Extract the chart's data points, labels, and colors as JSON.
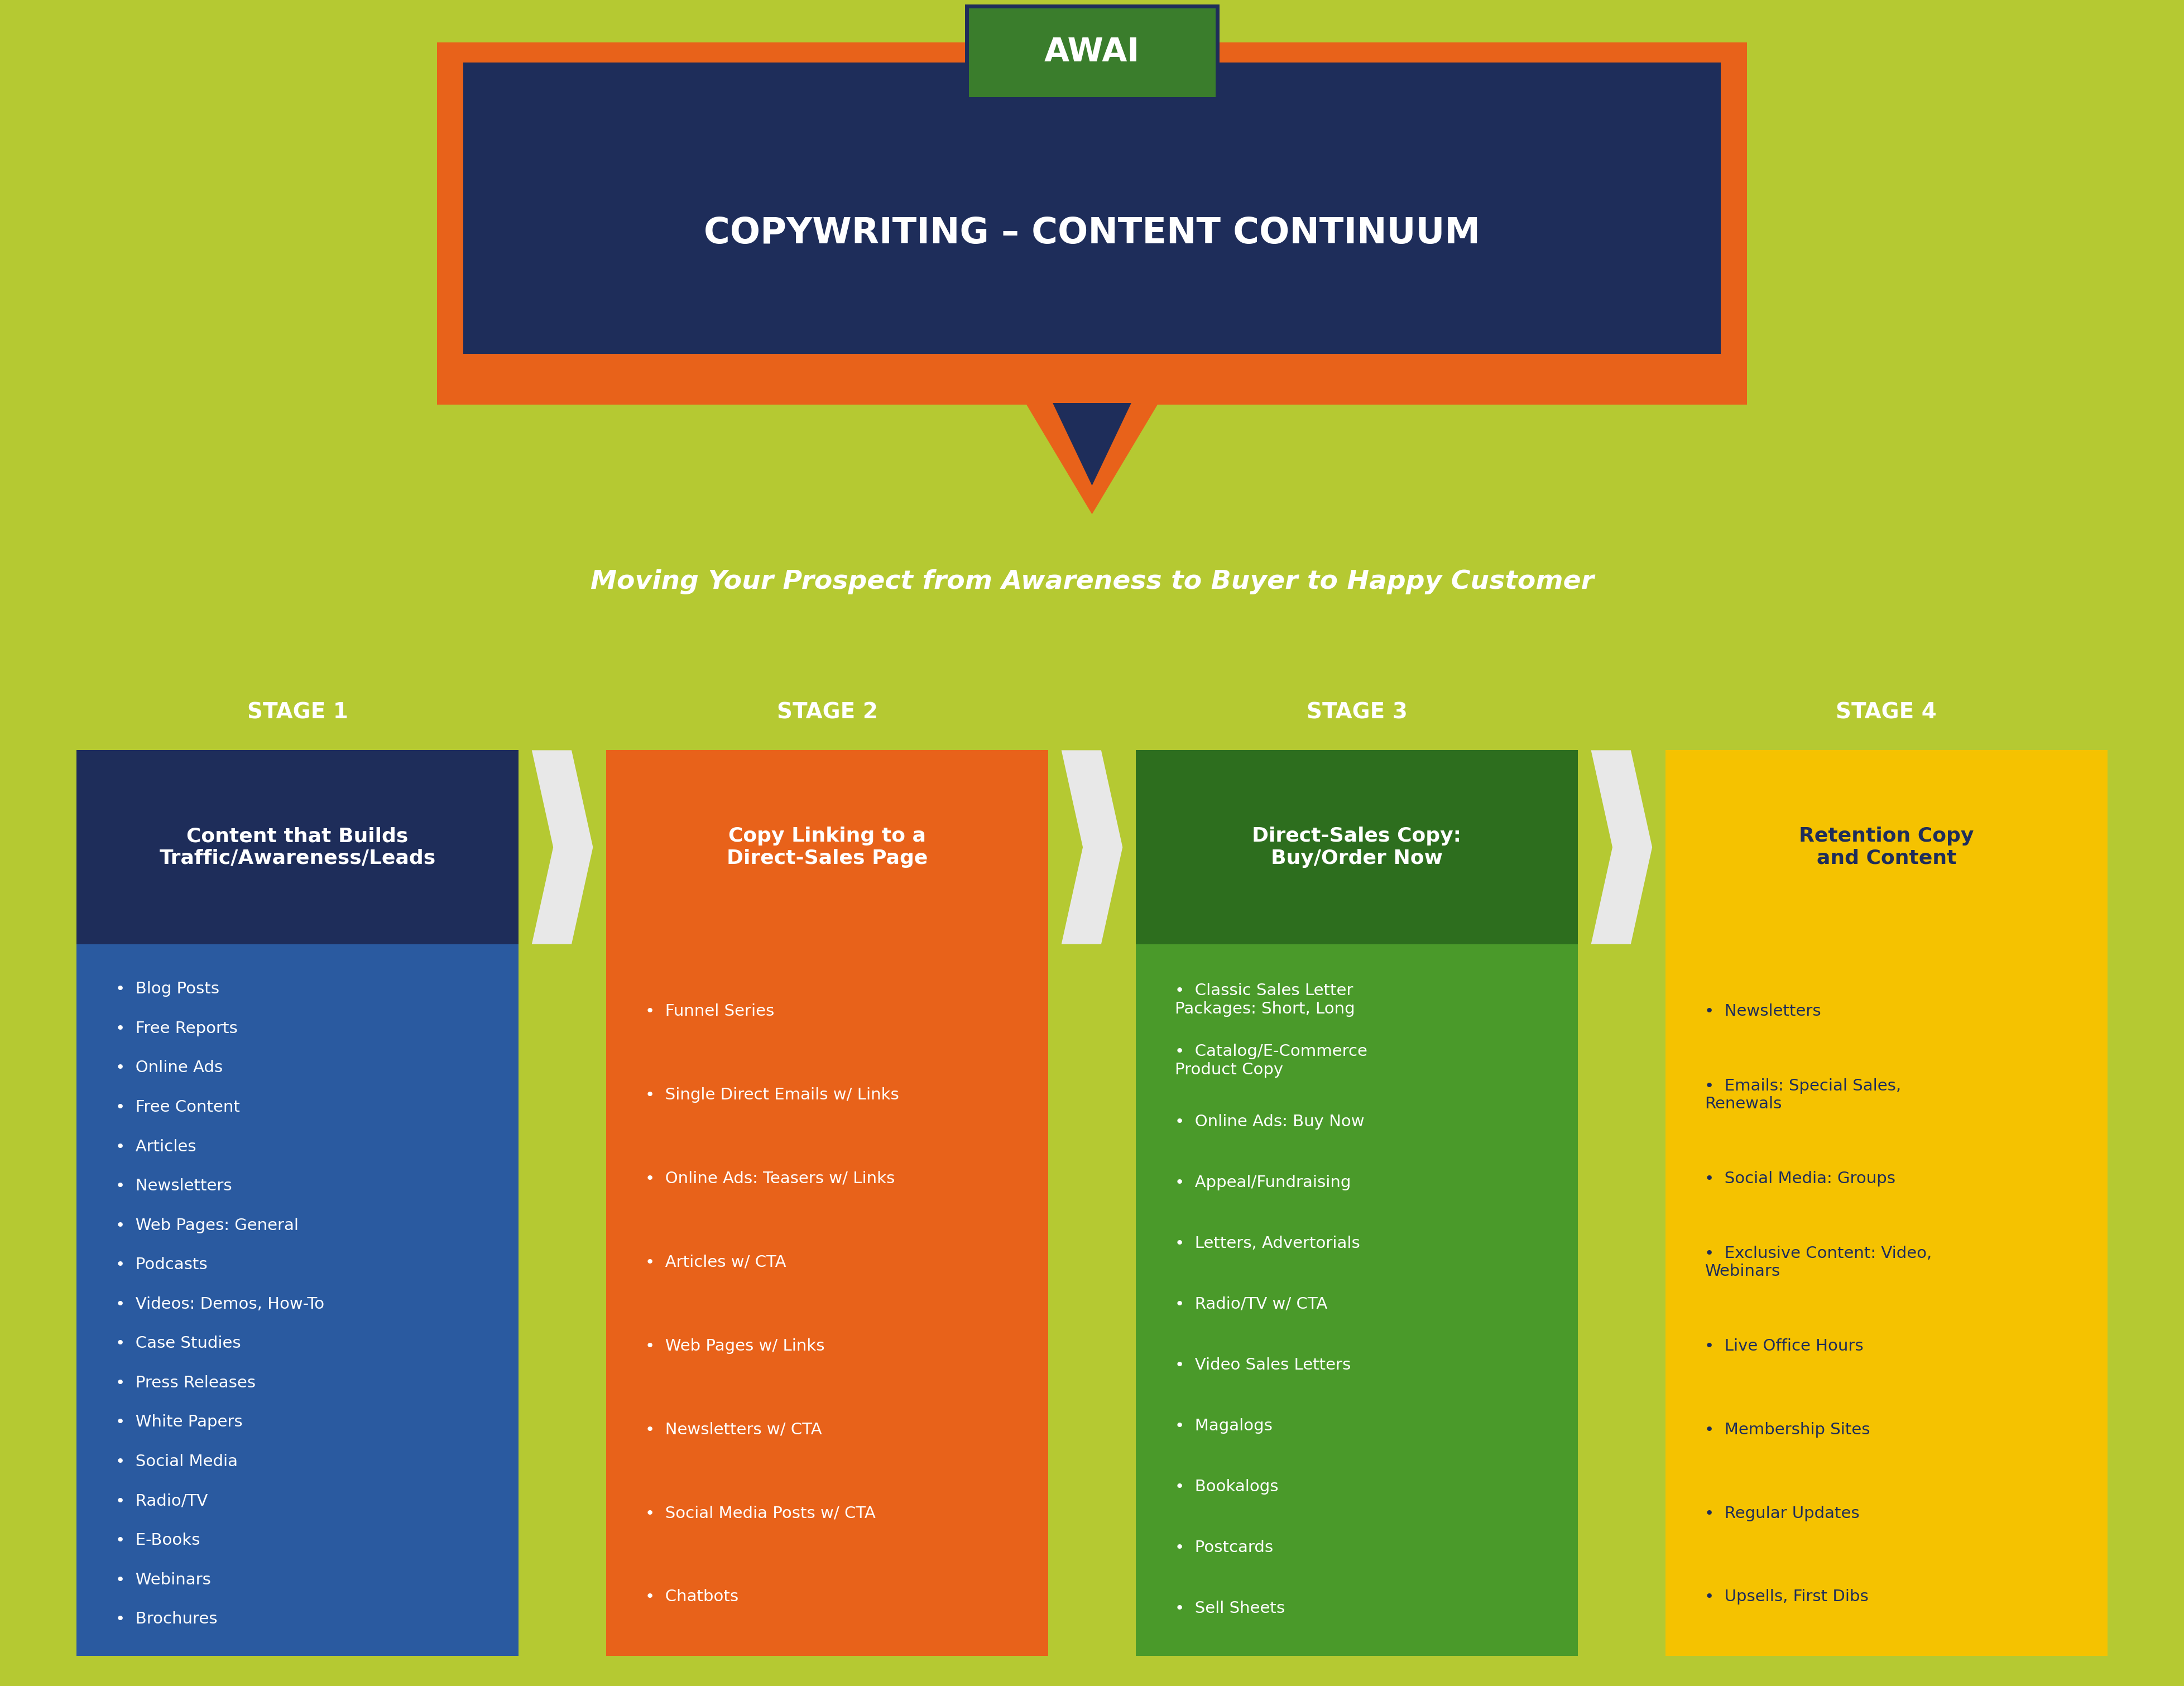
{
  "bg_color": "#b5c932",
  "title_box_bg": "#1e2d5a",
  "title_box_border": "#e8621a",
  "title_text": "COPYWRITING – CONTENT CONTINUUM",
  "title_color": "#ffffff",
  "awai_box_bg": "#3a7d2c",
  "awai_box_border": "#1e2d5a",
  "awai_text": "AWAI",
  "awai_text_color": "#ffffff",
  "subtitle": "Moving Your Prospect from Awareness to Buyer to Happy Customer",
  "subtitle_color": "#ffffff",
  "stages": [
    "STAGE 1",
    "STAGE 2",
    "STAGE 3",
    "STAGE 4"
  ],
  "stage_label_color": "#ffffff",
  "stage_headers": [
    "Content that Builds\nTraffic/Awareness/Leads",
    "Copy Linking to a\nDirect-Sales Page",
    "Direct-Sales Copy:\nBuy/Order Now",
    "Retention Copy\nand Content"
  ],
  "stage_header_bg": [
    "#1e2d5a",
    "#e8621a",
    "#2d6e1e",
    "#f5c200"
  ],
  "stage_header_text_colors": [
    "#ffffff",
    "#ffffff",
    "#ffffff",
    "#1e2d5a"
  ],
  "stage_bg_colors": [
    "#2a5aa0",
    "#e8621a",
    "#4a9a2a",
    "#f5c200"
  ],
  "stage_text_colors": [
    "#ffffff",
    "#ffffff",
    "#ffffff",
    "#1e2d5a"
  ],
  "arrow_color": "#e8e8e8",
  "stage_items": [
    [
      "Blog Posts",
      "Free Reports",
      "Online Ads",
      "Free Content",
      "Articles",
      "Newsletters",
      "Web Pages: General",
      "Podcasts",
      "Videos: Demos, How-To",
      "Case Studies",
      "Press Releases",
      "White Papers",
      "Social Media",
      "Radio/TV",
      "E-Books",
      "Webinars",
      "Brochures"
    ],
    [
      "Funnel Series",
      "Single Direct Emails w/ Links",
      "Online Ads: Teasers w/ Links",
      "Articles w/ CTA",
      "Web Pages w/ Links",
      "Newsletters w/ CTA",
      "Social Media Posts w/ CTA",
      "Chatbots"
    ],
    [
      "Classic Sales Letter\nPackages: Short, Long",
      "Catalog/E-Commerce\nProduct Copy",
      "Online Ads: Buy Now",
      "Appeal/Fundraising",
      "Letters, Advertorials",
      "Radio/TV w/ CTA",
      "Video Sales Letters",
      "Magalogs",
      "Bookalogs",
      "Postcards",
      "Sell Sheets"
    ],
    [
      "Newsletters",
      "Emails: Special Sales,\nRenewals",
      "Social Media: Groups",
      "Exclusive Content: Video,\nWebinars",
      "Live Office Hours",
      "Membership Sites",
      "Regular Updates",
      "Upsells, First Dibs"
    ]
  ]
}
